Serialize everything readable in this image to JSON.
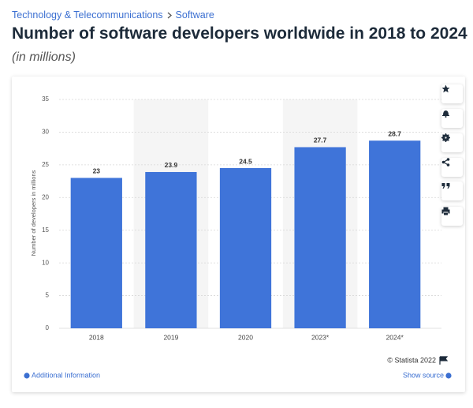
{
  "breadcrumb": [
    "Technology & Telecommunications",
    "Software"
  ],
  "chart_data": {
    "type": "bar",
    "title": "Number of software developers worldwide in 2018 to 2024",
    "subtitle": "(in millions)",
    "ylabel": "Number of developers in millions",
    "categories": [
      "2018",
      "2019",
      "2020",
      "2023*",
      "2024*"
    ],
    "values": [
      23,
      23.9,
      24.5,
      27.7,
      28.7
    ],
    "color": "#3f74d9",
    "ylim": [
      0,
      35
    ],
    "yticks": [
      0,
      5,
      10,
      15,
      20,
      25,
      30,
      35
    ],
    "grid": true
  },
  "footer": {
    "copyright": "© Statista 2022",
    "additional": "Additional Information",
    "source": "Show source"
  }
}
